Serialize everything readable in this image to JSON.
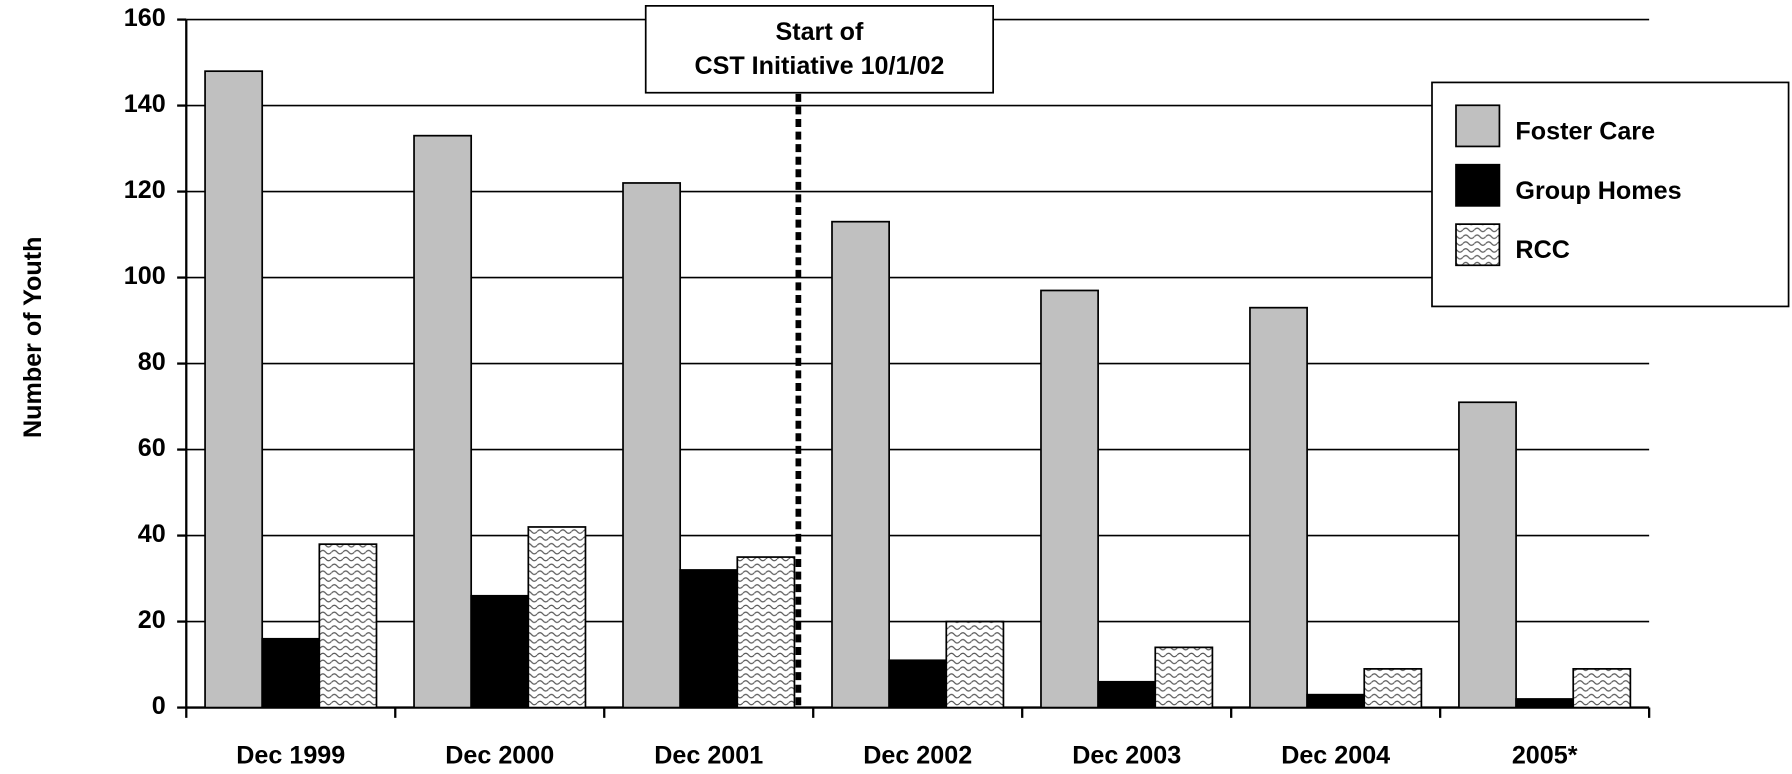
{
  "chart_data": {
    "type": "bar",
    "y_label": "Number of Youth",
    "annotation": [
      "Start of",
      "CST Initiative 10/1/02"
    ],
    "categories": [
      "Dec 1999",
      "Dec 2000",
      "Dec 2001",
      "Dec 2002",
      "Dec 2003",
      "Dec 2004",
      "2005*"
    ],
    "series": [
      {
        "name": "Foster Care",
        "color": "#c0c0c0",
        "values": [
          148,
          133,
          122,
          113,
          97,
          93,
          71
        ]
      },
      {
        "name": "Group Homes",
        "color": "#000000",
        "values": [
          16,
          26,
          32,
          11,
          6,
          3,
          2
        ]
      },
      {
        "name": "RCC",
        "color": "pattern",
        "values": [
          38,
          42,
          35,
          20,
          14,
          9,
          9
        ]
      }
    ],
    "ylim": [
      0,
      160
    ],
    "yticks": [
      0,
      20,
      40,
      60,
      80,
      100,
      120,
      140,
      160
    ],
    "grid": true,
    "legend": "top-right"
  }
}
